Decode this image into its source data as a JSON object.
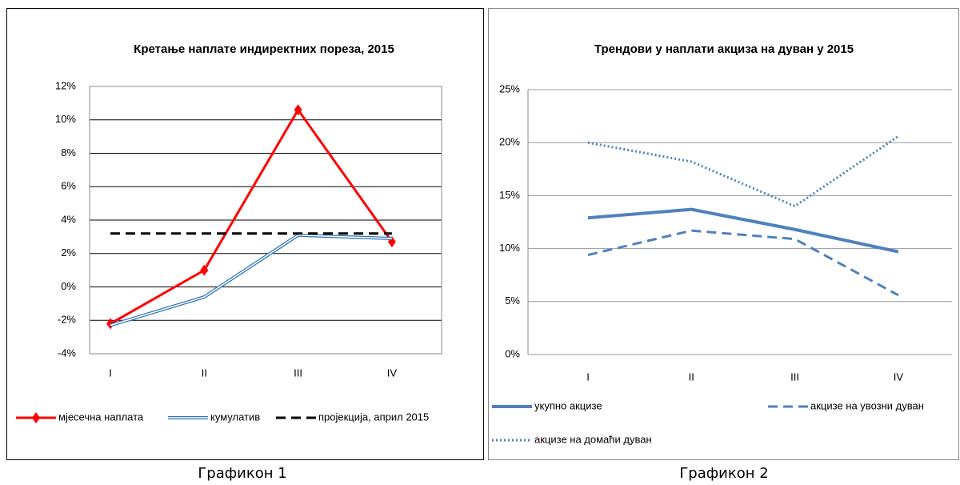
{
  "chart_data": [
    {
      "type": "line",
      "title": "Кретање наплате индиректних пореза, 2015",
      "caption": "Графикон 1",
      "categories": [
        "I",
        "II",
        "III",
        "IV"
      ],
      "ylim": [
        -4,
        12
      ],
      "yticks": [
        {
          "value": -4,
          "label": "-4%"
        },
        {
          "value": -2,
          "label": "-2%"
        },
        {
          "value": 0,
          "label": "0%"
        },
        {
          "value": 2,
          "label": "2%"
        },
        {
          "value": 4,
          "label": "4%"
        },
        {
          "value": 6,
          "label": "6%"
        },
        {
          "value": 8,
          "label": "8%"
        },
        {
          "value": 10,
          "label": "10%"
        },
        {
          "value": 12,
          "label": "12%"
        }
      ],
      "grid": true,
      "legend": "bottom",
      "series": [
        {
          "name": "мјесечна наплата",
          "color": "#ff0000",
          "line_style": "solid",
          "marker": "diamond",
          "values": [
            -2.2,
            1.0,
            10.6,
            2.7
          ]
        },
        {
          "name": "кумулатив",
          "color": "#2e75b6",
          "line_style": "double",
          "values": [
            -2.3,
            -0.6,
            3.1,
            2.9
          ]
        },
        {
          "name": "пројекција, април 2015",
          "color": "#000000",
          "line_style": "dashed",
          "values": [
            3.2,
            3.2,
            3.2,
            3.2
          ]
        }
      ]
    },
    {
      "type": "line",
      "title": "Трендови у наплати акциза на дуван у 2015",
      "caption": "Графикон 2",
      "categories": [
        "I",
        "II",
        "III",
        "IV"
      ],
      "ylim": [
        0,
        25
      ],
      "yticks": [
        {
          "value": 0,
          "label": "0%"
        },
        {
          "value": 5,
          "label": "5%"
        },
        {
          "value": 10,
          "label": "10%"
        },
        {
          "value": 15,
          "label": "15%"
        },
        {
          "value": 20,
          "label": "20%"
        },
        {
          "value": 25,
          "label": "25%"
        }
      ],
      "grid": true,
      "legend": "bottom",
      "series": [
        {
          "name": "укупно акцизе",
          "color": "#4f81bd",
          "line_style": "solid",
          "values": [
            12.9,
            13.7,
            11.8,
            9.7
          ]
        },
        {
          "name": "акцизе на увозни дуван",
          "color": "#4f81bd",
          "line_style": "dashed",
          "values": [
            9.4,
            11.7,
            10.9,
            5.6
          ]
        },
        {
          "name": "акцизе на домаћи дуван",
          "color": "#4f81bd",
          "line_style": "dotted",
          "values": [
            20.0,
            18.2,
            14.0,
            20.6
          ]
        }
      ]
    }
  ]
}
